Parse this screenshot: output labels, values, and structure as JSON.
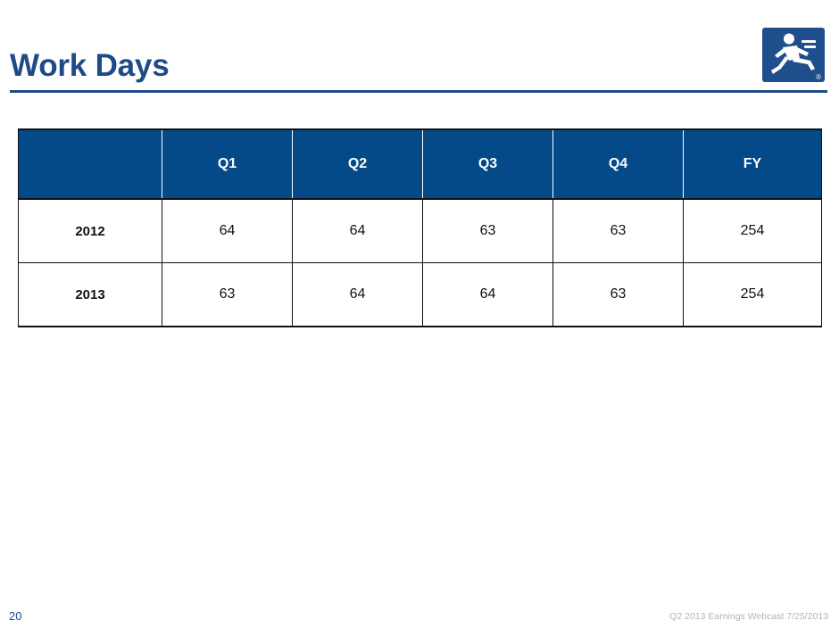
{
  "slide": {
    "title": "Work Days",
    "number": "20",
    "footer": "Q2 2013 Earnings Webcast 7/25/2013"
  },
  "logo": {
    "icon": "running-man-icon",
    "mark": "®"
  },
  "colors": {
    "brand_blue": "#1e4b87",
    "header_fill": "#044a89"
  },
  "table": {
    "columns": [
      "",
      "Q1",
      "Q2",
      "Q3",
      "Q4",
      "FY"
    ],
    "rows": [
      {
        "label": "2012",
        "values": [
          "64",
          "64",
          "63",
          "63",
          "254"
        ]
      },
      {
        "label": "2013",
        "values": [
          "63",
          "64",
          "64",
          "63",
          "254"
        ]
      }
    ]
  }
}
